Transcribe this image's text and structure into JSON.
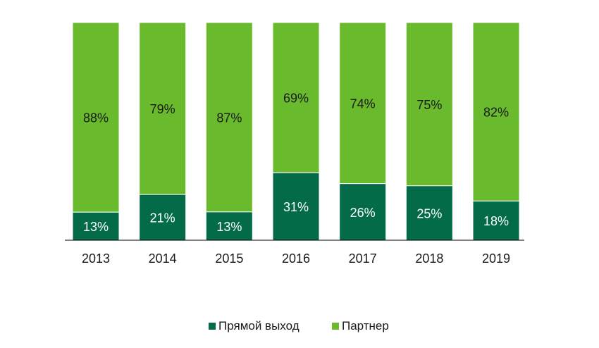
{
  "chart_data": {
    "type": "bar",
    "stacked": true,
    "categories": [
      "2013",
      "2014",
      "2015",
      "2016",
      "2017",
      "2018",
      "2019"
    ],
    "series": [
      {
        "name": "Прямой выход",
        "values": [
          13,
          21,
          13,
          31,
          26,
          25,
          18
        ],
        "labels": [
          "13%",
          "21%",
          "13%",
          "31%",
          "26%",
          "25%",
          "18%"
        ],
        "color": "#036b47"
      },
      {
        "name": "Партнер",
        "values": [
          88,
          79,
          87,
          69,
          74,
          75,
          82
        ],
        "labels": [
          "88%",
          "79%",
          "87%",
          "69%",
          "74%",
          "75%",
          "82%"
        ],
        "color": "#6aba2e"
      }
    ],
    "ylim": [
      0,
      100
    ],
    "grid": false,
    "legend_position": "bottom"
  }
}
